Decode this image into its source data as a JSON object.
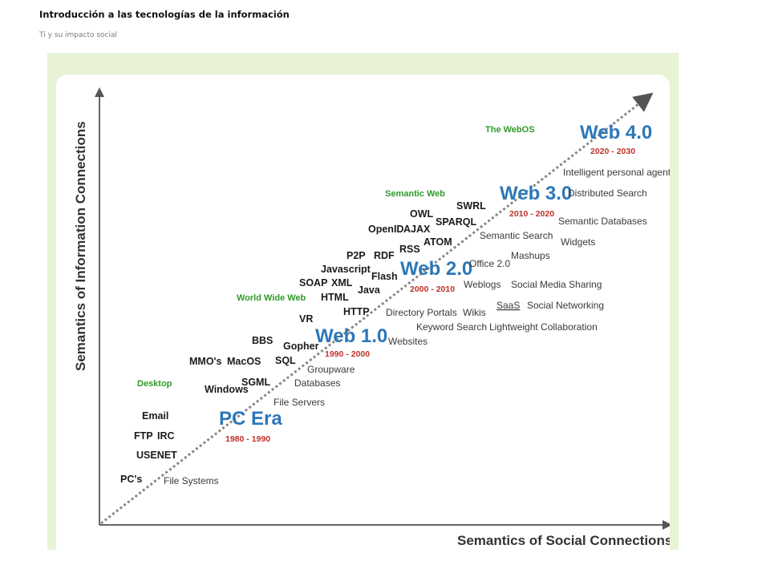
{
  "header": {
    "title": "Introducción a las tecnologías de la información",
    "subtitle": "Ti y su impacto social"
  },
  "diagram": {
    "y_axis_label": "Semantics of Information Connections",
    "x_axis_label": "Semantics of Social Connections",
    "eras": {
      "pc": {
        "title": "PC Era",
        "range": "1980 - 1990"
      },
      "web1": {
        "title": "Web 1.0",
        "range": "1990 - 2000"
      },
      "web2": {
        "title": "Web 2.0",
        "range": "2000 - 2010"
      },
      "web3": {
        "title": "Web 3.0",
        "range": "2010 - 2020"
      },
      "web4": {
        "title": "Web 4.0",
        "range": "2020 - 2030"
      }
    },
    "stages": {
      "desktop": "Desktop",
      "www": "World Wide Web",
      "semantic": "Semantic Web",
      "webos": "The WebOS"
    },
    "technologies": {
      "email": "Email",
      "ftp": "FTP",
      "irc": "IRC",
      "usenet": "USENET",
      "pcs": "PC's",
      "windows": "Windows",
      "sgml": "SGML",
      "mmos": "MMO's",
      "macos": "MacOS",
      "bbs": "BBS",
      "sql": "SQL",
      "gopher": "Gopher",
      "vr": "VR",
      "soap": "SOAP",
      "xml": "XML",
      "html": "HTML",
      "javascript": "Javascript",
      "java": "Java",
      "http": "HTTP",
      "p2p": "P2P",
      "rdf": "RDF",
      "flash": "Flash",
      "openid": "OpenID",
      "ajax": "AJAX",
      "rss": "RSS",
      "owl": "OWL",
      "sparql": "SPARQL",
      "atom": "ATOM",
      "swrl": "SWRL"
    },
    "applications": {
      "file_systems": "File Systems",
      "file_servers": "File Servers",
      "databases": "Databases",
      "groupware": "Groupware",
      "websites": "Websites",
      "keyword_search": "Keyword Search",
      "directory_portals": "Directory Portals",
      "wikis": "Wikis",
      "weblogs": "Weblogs",
      "office2": "Office 2.0",
      "lightweight_collab": "Lightweight Collaboration",
      "saas": "SaaS",
      "social_networking": "Social Networking",
      "social_media_sharing": "Social Media Sharing",
      "mashups": "Mashups",
      "semantic_search": "Semantic Search",
      "widgets": "Widgets",
      "semantic_databases": "Semantic Databases",
      "distributed_search": "Distributed Search",
      "intelligent_agents": "Intelligent personal agents"
    },
    "colors": {
      "era_blue": "#2e77b8",
      "range_red": "#c0312b",
      "stage_green": "#2f9a2a",
      "frame_green": "#e8f3d6"
    }
  }
}
